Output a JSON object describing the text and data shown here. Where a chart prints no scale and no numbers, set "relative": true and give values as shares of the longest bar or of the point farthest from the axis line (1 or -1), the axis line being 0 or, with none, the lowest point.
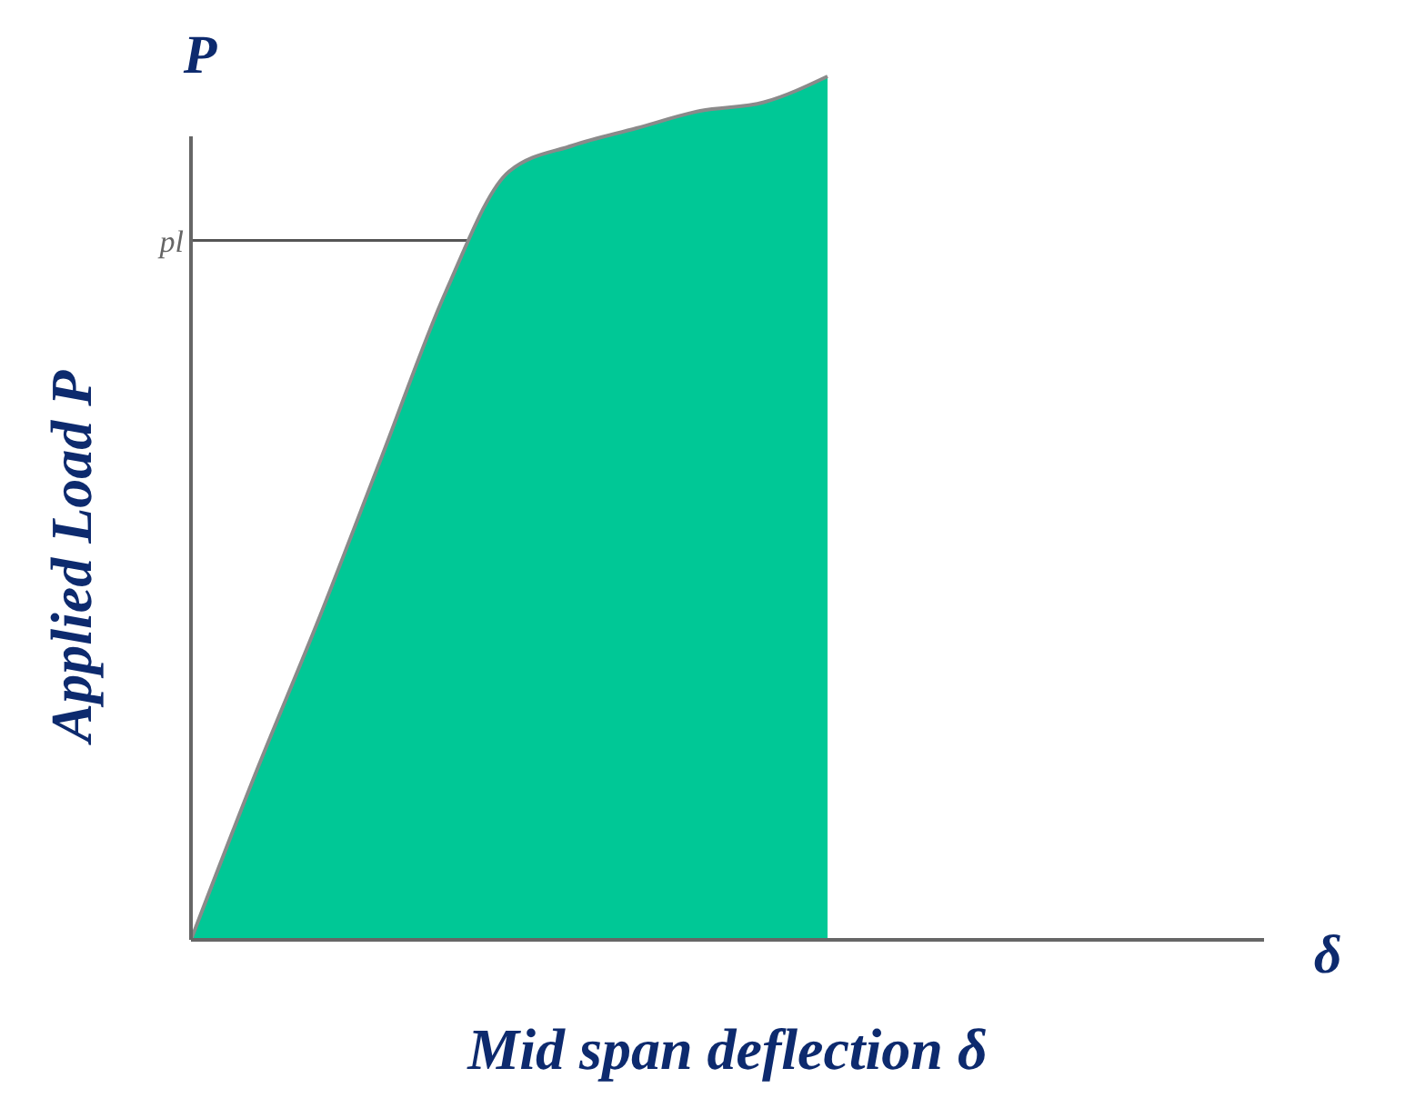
{
  "chart_data": {
    "type": "area",
    "relative": true,
    "categories": [
      null,
      null,
      null,
      null,
      null,
      null,
      null,
      null,
      null,
      null,
      null,
      null,
      null,
      null,
      null,
      null,
      null,
      null
    ],
    "series": [
      {
        "color": "#00c896",
        "values": [
          0,
          0.19,
          0.37,
          0.56,
          0.75,
          0.89,
          0.92,
          0.94,
          0.96,
          0.97,
          1,
          null,
          null,
          null,
          null,
          null,
          null,
          null
        ]
      }
    ],
    "xlabel": "Mid span deflection δ",
    "ylabel": "Applied Load P",
    "annotations": [
      "P",
      "δ"
    ],
    "ref_lines": [
      {
        "axis": "y",
        "value": 0.81,
        "label": "pl",
        "color": "#555555"
      }
    ]
  }
}
